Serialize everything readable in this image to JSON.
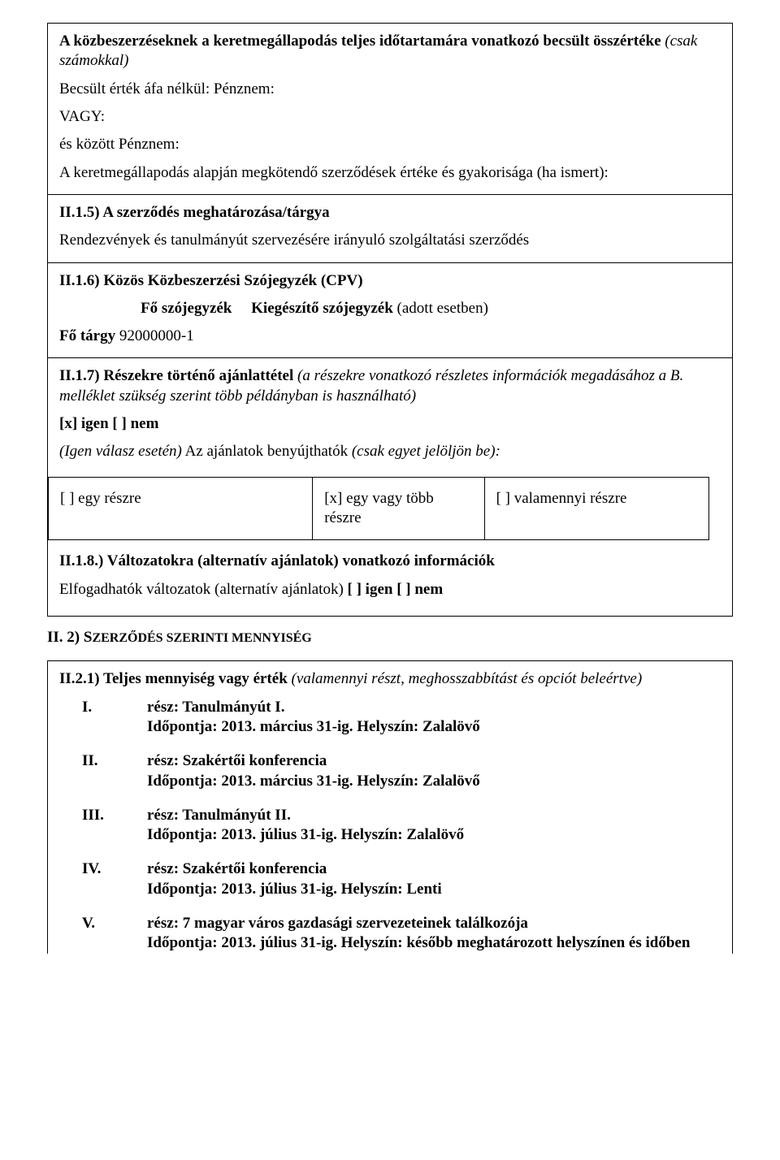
{
  "s1": {
    "title_a": "A közbeszerzéseknek a keretmegállapodás teljes időtartamára vonatkozó becsült összértéke ",
    "title_b": "(csak számokkal)",
    "l1": "Becsült érték áfa nélkül: Pénznem:",
    "l2": "VAGY:",
    "l3": "és között Pénznem:",
    "l4": "A keretmegállapodás alapján megkötendő szerződések értéke és gyakorisága (ha ismert):",
    "ii15_a": "II.1.5) A szerződés meghatározása/tárgya",
    "ii15_b": "Rendezvények és tanulmányút szervezésére irányuló szolgáltatási szerződés",
    "ii16": "II.1.6) Közös Közbeszerzési Szójegyzék (CPV)",
    "cpv_hdr_fo": "Fő szójegyzék",
    "cpv_hdr_kieg": "Kiegészítő szójegyzék",
    "cpv_hdr_ital": " (adott esetben)",
    "cpv_row_label": "Fő tárgy ",
    "cpv_row_value": "92000000-1",
    "ii17_a": "II.1.7) Részekre történő ajánlattétel ",
    "ii17_b": "(a részekre vonatkozó részletes információk megadásához a B. melléklet szükség szerint több példányban is használható)",
    "igen_nem": "[x] igen [ ] nem",
    "igen_esetén_a": "(Igen válasz esetén)",
    "igen_esetén_b": " Az ajánlatok benyújthatók ",
    "igen_esetén_c": "(csak egyet jelöljön be):",
    "opt1": "[ ] egy részre",
    "opt2": "[x] egy vagy több részre",
    "opt3": "[ ] valamennyi részre",
    "ii18_a": "II.1.8.) Változatokra (alternatív ajánlatok) vonatkozó információk",
    "ii18_b": "Elfogadhatók változatok (alternatív ajánlatok) ",
    "ii18_c": "[ ] igen [ ] nem"
  },
  "s2": {
    "hdr_a": "II. 2) S",
    "hdr_b": "ZERZŐDÉS SZERINTI MENNYISÉG"
  },
  "s3": {
    "ii21_a": "II.2.1) Teljes mennyiség vagy érték ",
    "ii21_b": "(valamennyi részt, meghosszabbítást és opciót beleértve)",
    "items": [
      {
        "num": "I.",
        "t1": "rész: Tanulmányút I.",
        "t2": "Időpontja: 2013. március 31-ig. Helyszín: Zalalövő"
      },
      {
        "num": "II.",
        "t1": "rész: Szakértői konferencia",
        "t2": "Időpontja: 2013. március 31-ig. Helyszín: Zalalövő"
      },
      {
        "num": "III.",
        "t1": "rész: Tanulmányút II.",
        "t2": "Időpontja: 2013. július 31-ig. Helyszín: Zalalövő"
      },
      {
        "num": "IV.",
        "t1": "rész: Szakértői konferencia",
        "t2": "Időpontja: 2013. július 31-ig. Helyszín: Lenti"
      },
      {
        "num": "V.",
        "t1": " rész: 7 magyar város gazdasági szervezeteinek találkozója",
        "t2": "Időpontja: 2013. július 31-ig. Helyszín: később meghatározott helyszínen és időben"
      }
    ]
  }
}
